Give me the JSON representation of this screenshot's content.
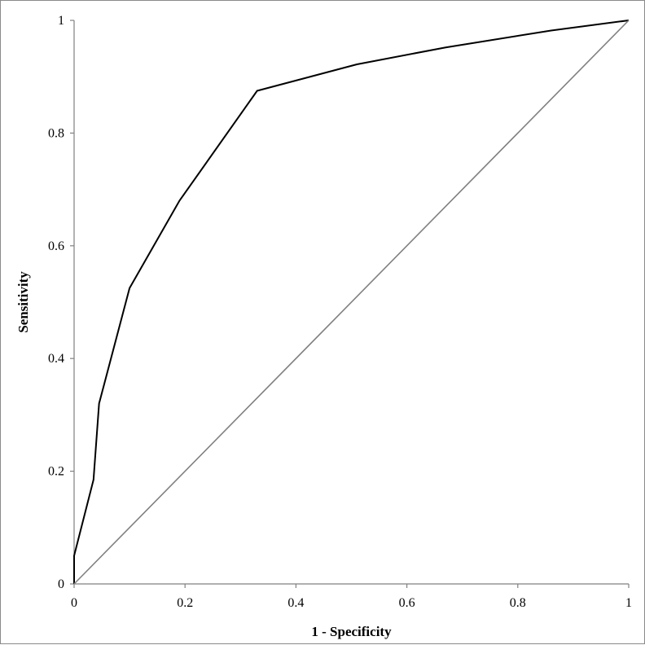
{
  "chart_data": {
    "type": "line",
    "title": "",
    "xlabel": "1 - Specificity",
    "ylabel": "Sensitivity",
    "xlim": [
      0,
      1
    ],
    "ylim": [
      0,
      1
    ],
    "x_ticks": [
      "0",
      "0.2",
      "0.4",
      "0.6",
      "0.8",
      "1"
    ],
    "y_ticks": [
      "0",
      "0.2",
      "0.4",
      "0.6",
      "0.8",
      "1"
    ],
    "grid": false,
    "legend": "none",
    "series": [
      {
        "color": "#000000",
        "points": [
          [
            0,
            0
          ],
          [
            0,
            0.05
          ],
          [
            0.035,
            0.185
          ],
          [
            0.045,
            0.32
          ],
          [
            0.1,
            0.525
          ],
          [
            0.19,
            0.68
          ],
          [
            0.33,
            0.875
          ],
          [
            0.51,
            0.922
          ],
          [
            0.67,
            0.952
          ],
          [
            0.86,
            0.982
          ],
          [
            1,
            1
          ]
        ]
      },
      {
        "color": "#808080",
        "points": [
          [
            0,
            0
          ],
          [
            1,
            1
          ]
        ]
      }
    ]
  }
}
